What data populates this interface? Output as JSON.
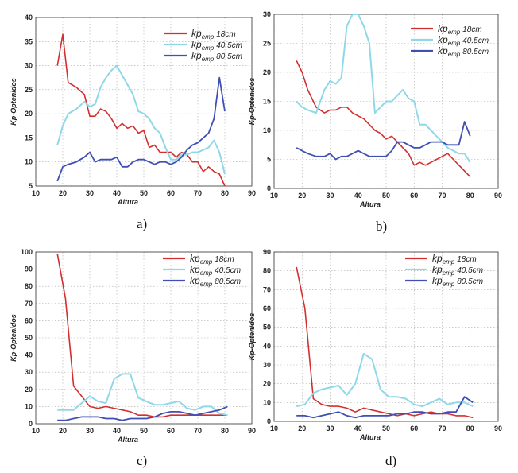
{
  "figure": {
    "series_names": [
      "kp_emp 18cm",
      "kp_emp 40.5cm",
      "kp_emp 80.5cm"
    ],
    "colors": {
      "s18": "#d32f2f",
      "s40": "#8fd8e8",
      "s80": "#3f4fb3",
      "axis": "#333333",
      "grid": "#aaaaaa"
    }
  },
  "chart_data": [
    {
      "type": "line",
      "panel": "a)",
      "caption": "a)",
      "xlabel": "Altura",
      "ylabel": "Kp-Optenidos",
      "xlim": [
        10,
        90
      ],
      "ylim": [
        5,
        40
      ],
      "xticks": [
        "10",
        "20",
        "30",
        "40",
        "50",
        "60",
        "70",
        "80",
        "90"
      ],
      "yticks": [
        "5",
        "10",
        "15",
        "20",
        "25",
        "30",
        "35",
        "40"
      ],
      "legend": {
        "labels": [
          "kp",
          "kp",
          "kp"
        ],
        "subs": [
          "emp",
          "emp",
          "emp"
        ],
        "sizes": [
          "18cm",
          "40.5cm",
          "80.5cm"
        ]
      },
      "series": [
        {
          "name": "kp_emp 18cm",
          "x": [
            18,
            20,
            22,
            25,
            28,
            30,
            32,
            34,
            36,
            38,
            40,
            42,
            44,
            46,
            48,
            50,
            52,
            54,
            56,
            58,
            60,
            62,
            64,
            66,
            68,
            70,
            72,
            74,
            76,
            78,
            80
          ],
          "values": [
            30,
            36.5,
            26.5,
            25.5,
            24,
            19.5,
            19.5,
            21,
            20.5,
            19,
            17,
            18,
            17,
            17.5,
            16,
            16.5,
            13,
            13.5,
            12,
            12,
            12,
            11,
            12,
            11.5,
            10,
            10,
            8,
            9,
            8,
            7.5,
            5
          ]
        },
        {
          "name": "kp_emp 40.5cm",
          "x": [
            18,
            20,
            22,
            25,
            28,
            30,
            32,
            34,
            36,
            38,
            40,
            42,
            44,
            46,
            48,
            50,
            52,
            54,
            56,
            58,
            60,
            62,
            64,
            66,
            68,
            70,
            72,
            74,
            76,
            78,
            80
          ],
          "values": [
            13.5,
            17.5,
            20,
            21,
            22.5,
            21.5,
            22,
            25.5,
            27.5,
            29,
            30,
            28,
            26,
            24,
            20.5,
            20,
            19,
            17,
            16,
            13,
            10.5,
            10.5,
            11.5,
            11.5,
            12,
            12,
            12.5,
            13,
            14.5,
            12,
            7.5
          ]
        },
        {
          "name": "kp_emp 80.5cm",
          "x": [
            18,
            20,
            22,
            25,
            28,
            30,
            32,
            34,
            36,
            38,
            40,
            42,
            44,
            46,
            48,
            50,
            52,
            54,
            56,
            58,
            60,
            62,
            64,
            66,
            68,
            70,
            72,
            74,
            76,
            78,
            80
          ],
          "values": [
            6,
            9,
            9.5,
            10,
            11,
            12,
            10,
            10.5,
            10.5,
            10.5,
            11,
            9,
            9,
            10,
            10.5,
            10.5,
            10,
            9.5,
            10,
            10,
            9.5,
            10,
            11,
            12.5,
            13.5,
            14,
            15,
            16,
            19,
            27.5,
            20.5
          ]
        }
      ]
    },
    {
      "type": "line",
      "panel": "b)",
      "caption": "b)",
      "xlabel": "Altura",
      "ylabel": "Kp-Optenidos",
      "xlim": [
        10,
        90
      ],
      "ylim": [
        0,
        30
      ],
      "xticks": [
        "10",
        "20",
        "30",
        "40",
        "50",
        "60",
        "70",
        "80",
        "90"
      ],
      "yticks": [
        "0",
        "5",
        "10",
        "15",
        "20",
        "25",
        "30"
      ],
      "legend": {
        "labels": [
          "kp",
          "kp",
          "kp"
        ],
        "subs": [
          "emp",
          "emp",
          "emp"
        ],
        "sizes": [
          "18cm",
          "40.5cm",
          "80.5cm"
        ]
      },
      "series": [
        {
          "name": "kp_emp 18cm",
          "x": [
            18,
            20,
            22,
            25,
            28,
            30,
            32,
            34,
            36,
            38,
            40,
            42,
            44,
            46,
            48,
            50,
            52,
            54,
            56,
            58,
            60,
            62,
            64,
            66,
            68,
            70,
            72,
            74,
            76,
            78,
            80
          ],
          "values": [
            22,
            20,
            17,
            14,
            13,
            13.5,
            13.5,
            14,
            14,
            13,
            12.5,
            12,
            11,
            10,
            9.5,
            8.5,
            9,
            8,
            7,
            6,
            4,
            4.5,
            4,
            4.5,
            5,
            5.5,
            6,
            5,
            4,
            3,
            2
          ]
        },
        {
          "name": "kp_emp 40.5cm",
          "x": [
            18,
            20,
            22,
            25,
            28,
            30,
            32,
            34,
            36,
            38,
            40,
            42,
            44,
            46,
            48,
            50,
            52,
            54,
            56,
            58,
            60,
            62,
            64,
            66,
            68,
            70,
            72,
            74,
            76,
            78,
            80
          ],
          "values": [
            15,
            14,
            13.5,
            13,
            17,
            18.5,
            18,
            19,
            28,
            30,
            30,
            28,
            25,
            13,
            14,
            15,
            15,
            16,
            17,
            15.5,
            15,
            11,
            11,
            10,
            9,
            8,
            7,
            6.5,
            6,
            6,
            4.5
          ]
        },
        {
          "name": "kp_emp 80.5cm",
          "x": [
            18,
            20,
            22,
            25,
            28,
            30,
            32,
            34,
            36,
            38,
            40,
            42,
            44,
            46,
            48,
            50,
            52,
            54,
            56,
            58,
            60,
            62,
            64,
            66,
            68,
            70,
            72,
            74,
            76,
            78,
            80
          ],
          "values": [
            7,
            6.5,
            6,
            5.5,
            5.5,
            6,
            5,
            5.5,
            5.5,
            6,
            6.5,
            6,
            5.5,
            5.5,
            5.5,
            5.5,
            6.5,
            8,
            8,
            7.5,
            7,
            7,
            7.5,
            8,
            8,
            8,
            7.5,
            7.5,
            7.5,
            11.5,
            9
          ]
        }
      ]
    },
    {
      "type": "line",
      "panel": "c)",
      "caption": "c)",
      "xlabel": "Altura",
      "ylabel": "Kp-Optenidos",
      "xlim": [
        10,
        90
      ],
      "ylim": [
        0,
        100
      ],
      "xticks": [
        "10",
        "20",
        "30",
        "40",
        "50",
        "60",
        "70",
        "80",
        "90"
      ],
      "yticks": [
        "0",
        "10",
        "20",
        "30",
        "40",
        "50",
        "60",
        "70",
        "80",
        "90",
        "100"
      ],
      "legend": {
        "labels": [
          "kp",
          "kp",
          "kp"
        ],
        "subs": [
          "emp",
          "emp",
          "emp"
        ],
        "sizes": [
          "18cm",
          "40.5cm",
          "80.5cm"
        ]
      },
      "series": [
        {
          "name": "kp_emp 18cm",
          "x": [
            18,
            21,
            24,
            27,
            30,
            33,
            36,
            39,
            42,
            45,
            48,
            51,
            54,
            57,
            60,
            63,
            66,
            69,
            72,
            75,
            78,
            81
          ],
          "values": [
            99,
            73,
            22,
            16,
            10,
            9,
            10,
            9,
            8,
            7,
            5,
            5,
            4,
            4,
            5,
            5,
            5,
            5,
            5,
            5,
            5,
            5
          ]
        },
        {
          "name": "kp_emp 40.5cm",
          "x": [
            18,
            21,
            24,
            27,
            30,
            33,
            36,
            39,
            42,
            45,
            48,
            51,
            54,
            57,
            60,
            63,
            66,
            69,
            72,
            75,
            78,
            81
          ],
          "values": [
            8,
            8,
            8,
            12,
            16,
            13,
            12,
            26,
            29,
            29,
            15,
            13,
            11,
            11,
            12,
            13,
            9,
            8,
            10,
            10,
            6,
            5
          ]
        },
        {
          "name": "kp_emp 80.5cm",
          "x": [
            18,
            21,
            24,
            27,
            30,
            33,
            36,
            39,
            42,
            45,
            48,
            51,
            54,
            57,
            60,
            63,
            66,
            69,
            72,
            75,
            78,
            81
          ],
          "values": [
            2,
            2,
            3,
            4,
            4,
            4,
            3,
            3,
            2,
            3,
            3,
            3,
            4,
            6,
            7,
            7,
            6,
            5,
            6,
            7,
            8,
            10
          ]
        }
      ]
    },
    {
      "type": "line",
      "panel": "d)",
      "caption": "d)",
      "xlabel": "Altura",
      "ylabel": "Kp-Optenidos",
      "xlim": [
        10,
        90
      ],
      "ylim": [
        0,
        90
      ],
      "xticks": [
        "10",
        "20",
        "30",
        "40",
        "50",
        "60",
        "70",
        "80",
        "90"
      ],
      "yticks": [
        "0",
        "10",
        "20",
        "30",
        "40",
        "50",
        "60",
        "70",
        "80",
        "90"
      ],
      "legend": {
        "labels": [
          "kp",
          "kp",
          "kp"
        ],
        "subs": [
          "emp",
          "emp",
          "emp"
        ],
        "sizes": [
          "18cm",
          "40.5cm",
          "80.5cm"
        ]
      },
      "series": [
        {
          "name": "kp_emp 18cm",
          "x": [
            18,
            21,
            24,
            27,
            30,
            33,
            36,
            39,
            42,
            45,
            48,
            51,
            54,
            57,
            60,
            63,
            66,
            69,
            72,
            75,
            78,
            81
          ],
          "values": [
            82,
            60,
            12,
            9,
            8,
            8,
            7,
            5,
            7,
            6,
            5,
            4,
            3,
            4,
            3,
            4,
            5,
            4,
            4,
            3,
            3,
            2
          ]
        },
        {
          "name": "kp_emp 40.5cm",
          "x": [
            18,
            21,
            24,
            27,
            30,
            33,
            36,
            39,
            42,
            45,
            48,
            51,
            54,
            57,
            60,
            63,
            66,
            69,
            72,
            75,
            78,
            81
          ],
          "values": [
            8,
            9,
            15,
            17,
            18,
            19,
            14,
            20,
            36,
            33,
            17,
            13,
            13,
            12,
            9,
            8,
            10,
            12,
            9,
            10,
            10,
            8
          ]
        },
        {
          "name": "kp_emp 80.5cm",
          "x": [
            18,
            21,
            24,
            27,
            30,
            33,
            36,
            39,
            42,
            45,
            48,
            51,
            54,
            57,
            60,
            63,
            66,
            69,
            72,
            75,
            78,
            81
          ],
          "values": [
            3,
            3,
            2,
            3,
            4,
            5,
            3,
            2,
            3,
            3,
            3,
            3,
            4,
            4,
            5,
            5,
            4,
            4,
            5,
            5,
            13,
            10
          ]
        }
      ]
    }
  ]
}
